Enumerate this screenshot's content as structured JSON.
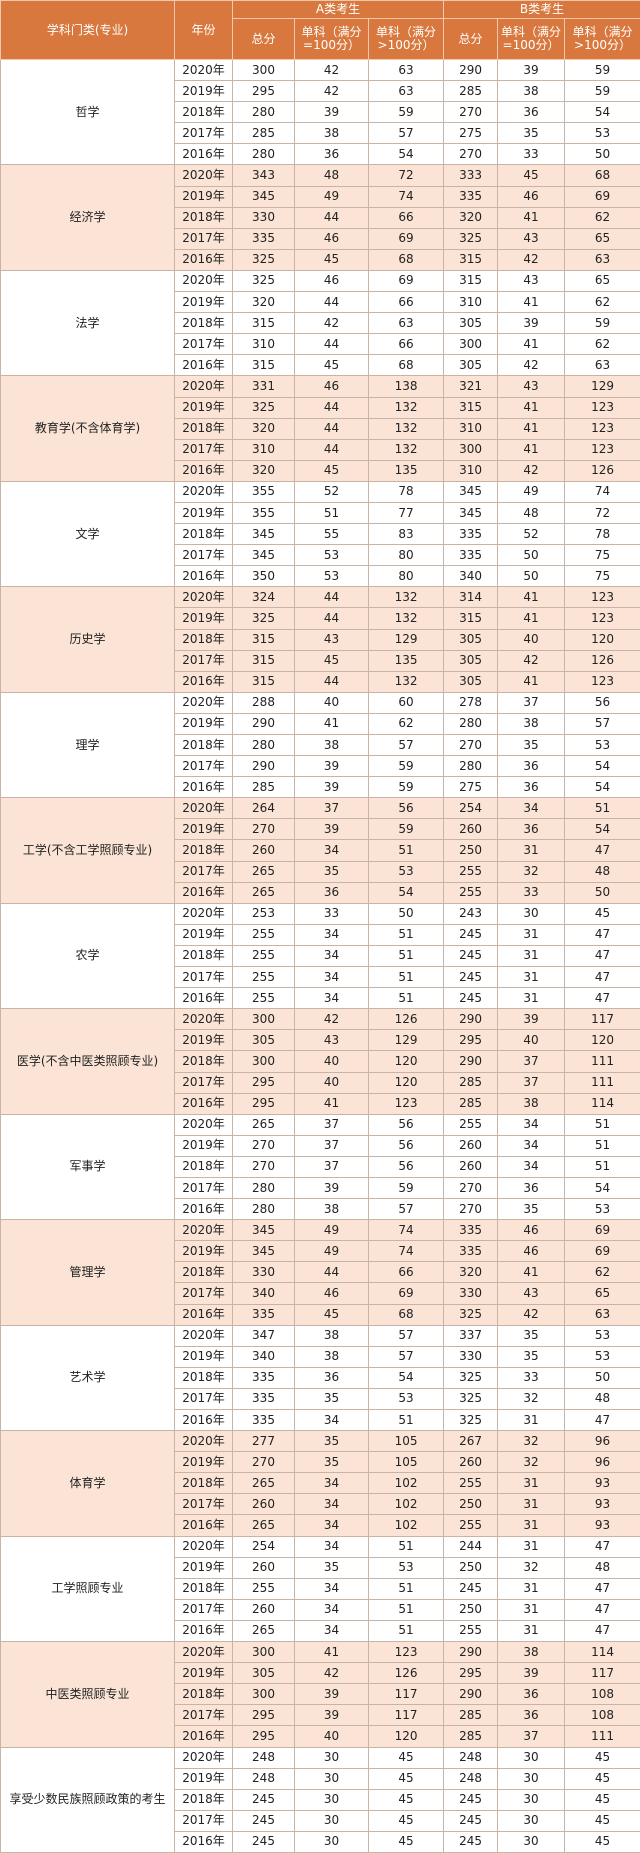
{
  "header": {
    "category": "学科门类(专业)",
    "year": "年份",
    "group_a": "A类考生",
    "group_b": "B类考生",
    "a_total": "总分",
    "a_eq100": "单科（满分=100分）",
    "a_gt100": "单科（满分>100分）",
    "b_total": "总分",
    "b_eq100": "单科（满分=100分）",
    "b_gt100": "单科（满分>100分）"
  },
  "groups": [
    {
      "name": "哲学",
      "rows": [
        [
          "2020年",
          300,
          42,
          63,
          290,
          39,
          59
        ],
        [
          "2019年",
          295,
          42,
          63,
          285,
          38,
          59
        ],
        [
          "2018年",
          280,
          39,
          59,
          270,
          36,
          54
        ],
        [
          "2017年",
          285,
          38,
          57,
          275,
          35,
          53
        ],
        [
          "2016年",
          280,
          36,
          54,
          270,
          33,
          50
        ]
      ]
    },
    {
      "name": "经济学",
      "rows": [
        [
          "2020年",
          343,
          48,
          72,
          333,
          45,
          68
        ],
        [
          "2019年",
          345,
          49,
          74,
          335,
          46,
          69
        ],
        [
          "2018年",
          330,
          44,
          66,
          320,
          41,
          62
        ],
        [
          "2017年",
          335,
          46,
          69,
          325,
          43,
          65
        ],
        [
          "2016年",
          325,
          45,
          68,
          315,
          42,
          63
        ]
      ]
    },
    {
      "name": "法学",
      "rows": [
        [
          "2020年",
          325,
          46,
          69,
          315,
          43,
          65
        ],
        [
          "2019年",
          320,
          44,
          66,
          310,
          41,
          62
        ],
        [
          "2018年",
          315,
          42,
          63,
          305,
          39,
          59
        ],
        [
          "2017年",
          310,
          44,
          66,
          300,
          41,
          62
        ],
        [
          "2016年",
          315,
          45,
          68,
          305,
          42,
          63
        ]
      ]
    },
    {
      "name": "教育学(不含体育学)",
      "rows": [
        [
          "2020年",
          331,
          46,
          138,
          321,
          43,
          129
        ],
        [
          "2019年",
          325,
          44,
          132,
          315,
          41,
          123
        ],
        [
          "2018年",
          320,
          44,
          132,
          310,
          41,
          123
        ],
        [
          "2017年",
          310,
          44,
          132,
          300,
          41,
          123
        ],
        [
          "2016年",
          320,
          45,
          135,
          310,
          42,
          126
        ]
      ]
    },
    {
      "name": "文学",
      "rows": [
        [
          "2020年",
          355,
          52,
          78,
          345,
          49,
          74
        ],
        [
          "2019年",
          355,
          51,
          77,
          345,
          48,
          72
        ],
        [
          "2018年",
          345,
          55,
          83,
          335,
          52,
          78
        ],
        [
          "2017年",
          345,
          53,
          80,
          335,
          50,
          75
        ],
        [
          "2016年",
          350,
          53,
          80,
          340,
          50,
          75
        ]
      ]
    },
    {
      "name": "历史学",
      "rows": [
        [
          "2020年",
          324,
          44,
          132,
          314,
          41,
          123
        ],
        [
          "2019年",
          325,
          44,
          132,
          315,
          41,
          123
        ],
        [
          "2018年",
          315,
          43,
          129,
          305,
          40,
          120
        ],
        [
          "2017年",
          315,
          45,
          135,
          305,
          42,
          126
        ],
        [
          "2016年",
          315,
          44,
          132,
          305,
          41,
          123
        ]
      ]
    },
    {
      "name": "理学",
      "rows": [
        [
          "2020年",
          288,
          40,
          60,
          278,
          37,
          56
        ],
        [
          "2019年",
          290,
          41,
          62,
          280,
          38,
          57
        ],
        [
          "2018年",
          280,
          38,
          57,
          270,
          35,
          53
        ],
        [
          "2017年",
          290,
          39,
          59,
          280,
          36,
          54
        ],
        [
          "2016年",
          285,
          39,
          59,
          275,
          36,
          54
        ]
      ]
    },
    {
      "name": "工学(不含工学照顾专业)",
      "rows": [
        [
          "2020年",
          264,
          37,
          56,
          254,
          34,
          51
        ],
        [
          "2019年",
          270,
          39,
          59,
          260,
          36,
          54
        ],
        [
          "2018年",
          260,
          34,
          51,
          250,
          31,
          47
        ],
        [
          "2017年",
          265,
          35,
          53,
          255,
          32,
          48
        ],
        [
          "2016年",
          265,
          36,
          54,
          255,
          33,
          50
        ]
      ]
    },
    {
      "name": "农学",
      "rows": [
        [
          "2020年",
          253,
          33,
          50,
          243,
          30,
          45
        ],
        [
          "2019年",
          255,
          34,
          51,
          245,
          31,
          47
        ],
        [
          "2018年",
          255,
          34,
          51,
          245,
          31,
          47
        ],
        [
          "2017年",
          255,
          34,
          51,
          245,
          31,
          47
        ],
        [
          "2016年",
          255,
          34,
          51,
          245,
          31,
          47
        ]
      ]
    },
    {
      "name": "医学(不含中医类照顾专业)",
      "rows": [
        [
          "2020年",
          300,
          42,
          126,
          290,
          39,
          117
        ],
        [
          "2019年",
          305,
          43,
          129,
          295,
          40,
          120
        ],
        [
          "2018年",
          300,
          40,
          120,
          290,
          37,
          111
        ],
        [
          "2017年",
          295,
          40,
          120,
          285,
          37,
          111
        ],
        [
          "2016年",
          295,
          41,
          123,
          285,
          38,
          114
        ]
      ]
    },
    {
      "name": "军事学",
      "rows": [
        [
          "2020年",
          265,
          37,
          56,
          255,
          34,
          51
        ],
        [
          "2019年",
          270,
          37,
          56,
          260,
          34,
          51
        ],
        [
          "2018年",
          270,
          37,
          56,
          260,
          34,
          51
        ],
        [
          "2017年",
          280,
          39,
          59,
          270,
          36,
          54
        ],
        [
          "2016年",
          280,
          38,
          57,
          270,
          35,
          53
        ]
      ]
    },
    {
      "name": "管理学",
      "rows": [
        [
          "2020年",
          345,
          49,
          74,
          335,
          46,
          69
        ],
        [
          "2019年",
          345,
          49,
          74,
          335,
          46,
          69
        ],
        [
          "2018年",
          330,
          44,
          66,
          320,
          41,
          62
        ],
        [
          "2017年",
          340,
          46,
          69,
          330,
          43,
          65
        ],
        [
          "2016年",
          335,
          45,
          68,
          325,
          42,
          63
        ]
      ]
    },
    {
      "name": "艺术学",
      "rows": [
        [
          "2020年",
          347,
          38,
          57,
          337,
          35,
          53
        ],
        [
          "2019年",
          340,
          38,
          57,
          330,
          35,
          53
        ],
        [
          "2018年",
          335,
          36,
          54,
          325,
          33,
          50
        ],
        [
          "2017年",
          335,
          35,
          53,
          325,
          32,
          48
        ],
        [
          "2016年",
          335,
          34,
          51,
          325,
          31,
          47
        ]
      ]
    },
    {
      "name": "体育学",
      "rows": [
        [
          "2020年",
          277,
          35,
          105,
          267,
          32,
          96
        ],
        [
          "2019年",
          270,
          35,
          105,
          260,
          32,
          96
        ],
        [
          "2018年",
          265,
          34,
          102,
          255,
          31,
          93
        ],
        [
          "2017年",
          260,
          34,
          102,
          250,
          31,
          93
        ],
        [
          "2016年",
          265,
          34,
          102,
          255,
          31,
          93
        ]
      ]
    },
    {
      "name": "工学照顾专业",
      "rows": [
        [
          "2020年",
          254,
          34,
          51,
          244,
          31,
          47
        ],
        [
          "2019年",
          260,
          35,
          53,
          250,
          32,
          48
        ],
        [
          "2018年",
          255,
          34,
          51,
          245,
          31,
          47
        ],
        [
          "2017年",
          260,
          34,
          51,
          250,
          31,
          47
        ],
        [
          "2016年",
          265,
          34,
          51,
          255,
          31,
          47
        ]
      ]
    },
    {
      "name": "中医类照顾专业",
      "rows": [
        [
          "2020年",
          300,
          41,
          123,
          290,
          38,
          114
        ],
        [
          "2019年",
          305,
          42,
          126,
          295,
          39,
          117
        ],
        [
          "2018年",
          300,
          39,
          117,
          290,
          36,
          108
        ],
        [
          "2017年",
          295,
          39,
          117,
          285,
          36,
          108
        ],
        [
          "2016年",
          295,
          40,
          120,
          285,
          37,
          111
        ]
      ]
    },
    {
      "name": "享受少数民族照顾政策的考生",
      "rows": [
        [
          "2020年",
          248,
          30,
          45,
          248,
          30,
          45
        ],
        [
          "2019年",
          248,
          30,
          45,
          248,
          30,
          45
        ],
        [
          "2018年",
          245,
          30,
          45,
          245,
          30,
          45
        ],
        [
          "2017年",
          245,
          30,
          45,
          245,
          30,
          45
        ],
        [
          "2016年",
          245,
          30,
          45,
          245,
          30,
          45
        ]
      ]
    }
  ]
}
